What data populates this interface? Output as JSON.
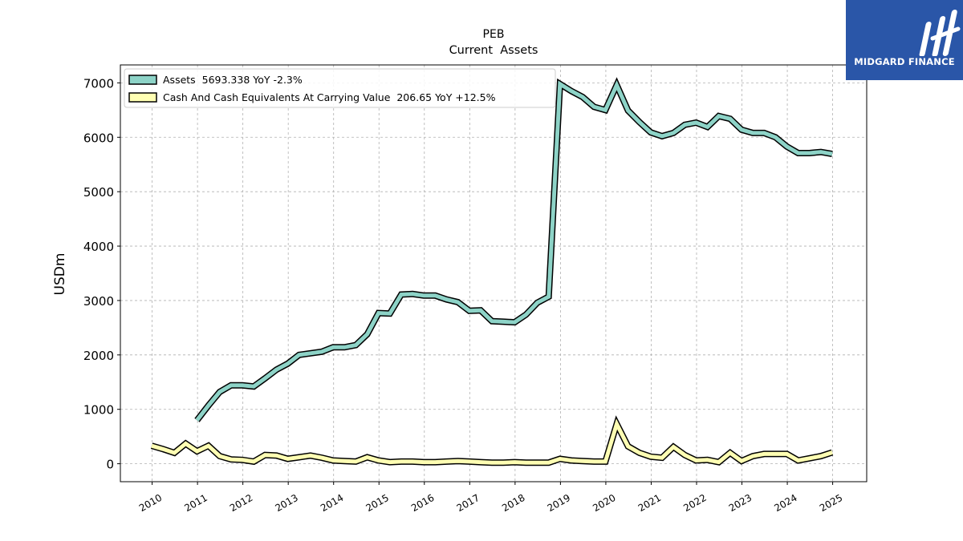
{
  "chart_data": {
    "type": "line",
    "title": "PEB",
    "subtitle": "Current  Assets",
    "ylabel": "USDm",
    "xlabel": "",
    "ylim": [
      -330,
      7330
    ],
    "xlim": [
      2009.3,
      2025.75
    ],
    "yticks": [
      0,
      1000,
      2000,
      3000,
      4000,
      5000,
      6000,
      7000
    ],
    "xticks": [
      "2010",
      "2011",
      "2012",
      "2013",
      "2014",
      "2015",
      "2016",
      "2017",
      "2018",
      "2019",
      "2020",
      "2021",
      "2022",
      "2023",
      "2024",
      "2025"
    ],
    "grid": true,
    "legend_position": "top-left",
    "series": [
      {
        "name": "Assets  5693.338 YoY -2.3%",
        "color": "#8dd3c7",
        "points": [
          [
            2010.99,
            800
          ],
          [
            2011.24,
            1070
          ],
          [
            2011.49,
            1320
          ],
          [
            2011.74,
            1440
          ],
          [
            2011.99,
            1440
          ],
          [
            2012.24,
            1420
          ],
          [
            2012.49,
            1570
          ],
          [
            2012.74,
            1730
          ],
          [
            2012.99,
            1840
          ],
          [
            2013.24,
            2000
          ],
          [
            2013.49,
            2030
          ],
          [
            2013.74,
            2060
          ],
          [
            2013.99,
            2140
          ],
          [
            2014.24,
            2140
          ],
          [
            2014.49,
            2180
          ],
          [
            2014.74,
            2380
          ],
          [
            2014.99,
            2770
          ],
          [
            2015.24,
            2760
          ],
          [
            2015.49,
            3110
          ],
          [
            2015.74,
            3120
          ],
          [
            2015.99,
            3090
          ],
          [
            2016.24,
            3090
          ],
          [
            2016.49,
            3020
          ],
          [
            2016.74,
            2970
          ],
          [
            2016.99,
            2810
          ],
          [
            2017.24,
            2820
          ],
          [
            2017.49,
            2620
          ],
          [
            2017.74,
            2610
          ],
          [
            2017.99,
            2600
          ],
          [
            2018.24,
            2740
          ],
          [
            2018.49,
            2960
          ],
          [
            2018.74,
            3070
          ],
          [
            2018.99,
            6980
          ],
          [
            2019.24,
            6850
          ],
          [
            2019.49,
            6740
          ],
          [
            2019.74,
            6560
          ],
          [
            2019.99,
            6500
          ],
          [
            2020.24,
            6960
          ],
          [
            2020.49,
            6490
          ],
          [
            2020.74,
            6280
          ],
          [
            2020.99,
            6090
          ],
          [
            2021.24,
            6020
          ],
          [
            2021.49,
            6080
          ],
          [
            2021.74,
            6230
          ],
          [
            2021.99,
            6270
          ],
          [
            2022.24,
            6190
          ],
          [
            2022.49,
            6390
          ],
          [
            2022.74,
            6340
          ],
          [
            2022.99,
            6140
          ],
          [
            2023.24,
            6080
          ],
          [
            2023.49,
            6080
          ],
          [
            2023.74,
            6000
          ],
          [
            2023.99,
            5830
          ],
          [
            2024.24,
            5710
          ],
          [
            2024.49,
            5710
          ],
          [
            2024.74,
            5730
          ],
          [
            2024.99,
            5693
          ]
        ]
      },
      {
        "name": "Cash And Cash Equivalents At Carrying Value  206.65 YoY +12.5%",
        "color": "#ffffb3",
        "points": [
          [
            2009.99,
            330
          ],
          [
            2010.24,
            270
          ],
          [
            2010.49,
            200
          ],
          [
            2010.74,
            370
          ],
          [
            2010.99,
            230
          ],
          [
            2011.24,
            330
          ],
          [
            2011.49,
            140
          ],
          [
            2011.74,
            80
          ],
          [
            2011.99,
            70
          ],
          [
            2012.24,
            40
          ],
          [
            2012.49,
            160
          ],
          [
            2012.74,
            150
          ],
          [
            2012.99,
            90
          ],
          [
            2013.24,
            120
          ],
          [
            2013.49,
            150
          ],
          [
            2013.74,
            110
          ],
          [
            2013.99,
            60
          ],
          [
            2014.24,
            50
          ],
          [
            2014.49,
            40
          ],
          [
            2014.74,
            120
          ],
          [
            2014.99,
            60
          ],
          [
            2015.24,
            30
          ],
          [
            2015.49,
            40
          ],
          [
            2015.74,
            40
          ],
          [
            2015.99,
            30
          ],
          [
            2016.24,
            30
          ],
          [
            2016.49,
            40
          ],
          [
            2016.74,
            50
          ],
          [
            2016.99,
            40
          ],
          [
            2017.24,
            30
          ],
          [
            2017.49,
            20
          ],
          [
            2017.74,
            20
          ],
          [
            2017.99,
            30
          ],
          [
            2018.24,
            20
          ],
          [
            2018.49,
            20
          ],
          [
            2018.74,
            20
          ],
          [
            2018.99,
            90
          ],
          [
            2019.24,
            60
          ],
          [
            2019.49,
            50
          ],
          [
            2019.74,
            40
          ],
          [
            2019.99,
            40
          ],
          [
            2020.24,
            730
          ],
          [
            2020.49,
            320
          ],
          [
            2020.74,
            200
          ],
          [
            2020.99,
            130
          ],
          [
            2021.24,
            110
          ],
          [
            2021.49,
            310
          ],
          [
            2021.74,
            160
          ],
          [
            2021.99,
            60
          ],
          [
            2022.24,
            70
          ],
          [
            2022.49,
            30
          ],
          [
            2022.74,
            200
          ],
          [
            2022.99,
            50
          ],
          [
            2023.24,
            140
          ],
          [
            2023.49,
            180
          ],
          [
            2023.74,
            180
          ],
          [
            2023.99,
            180
          ],
          [
            2024.24,
            60
          ],
          [
            2024.49,
            100
          ],
          [
            2024.74,
            140
          ],
          [
            2024.99,
            207
          ]
        ]
      }
    ]
  },
  "logo": {
    "text": "MIDGARD FINANCE",
    "background": "#2a56a8"
  }
}
